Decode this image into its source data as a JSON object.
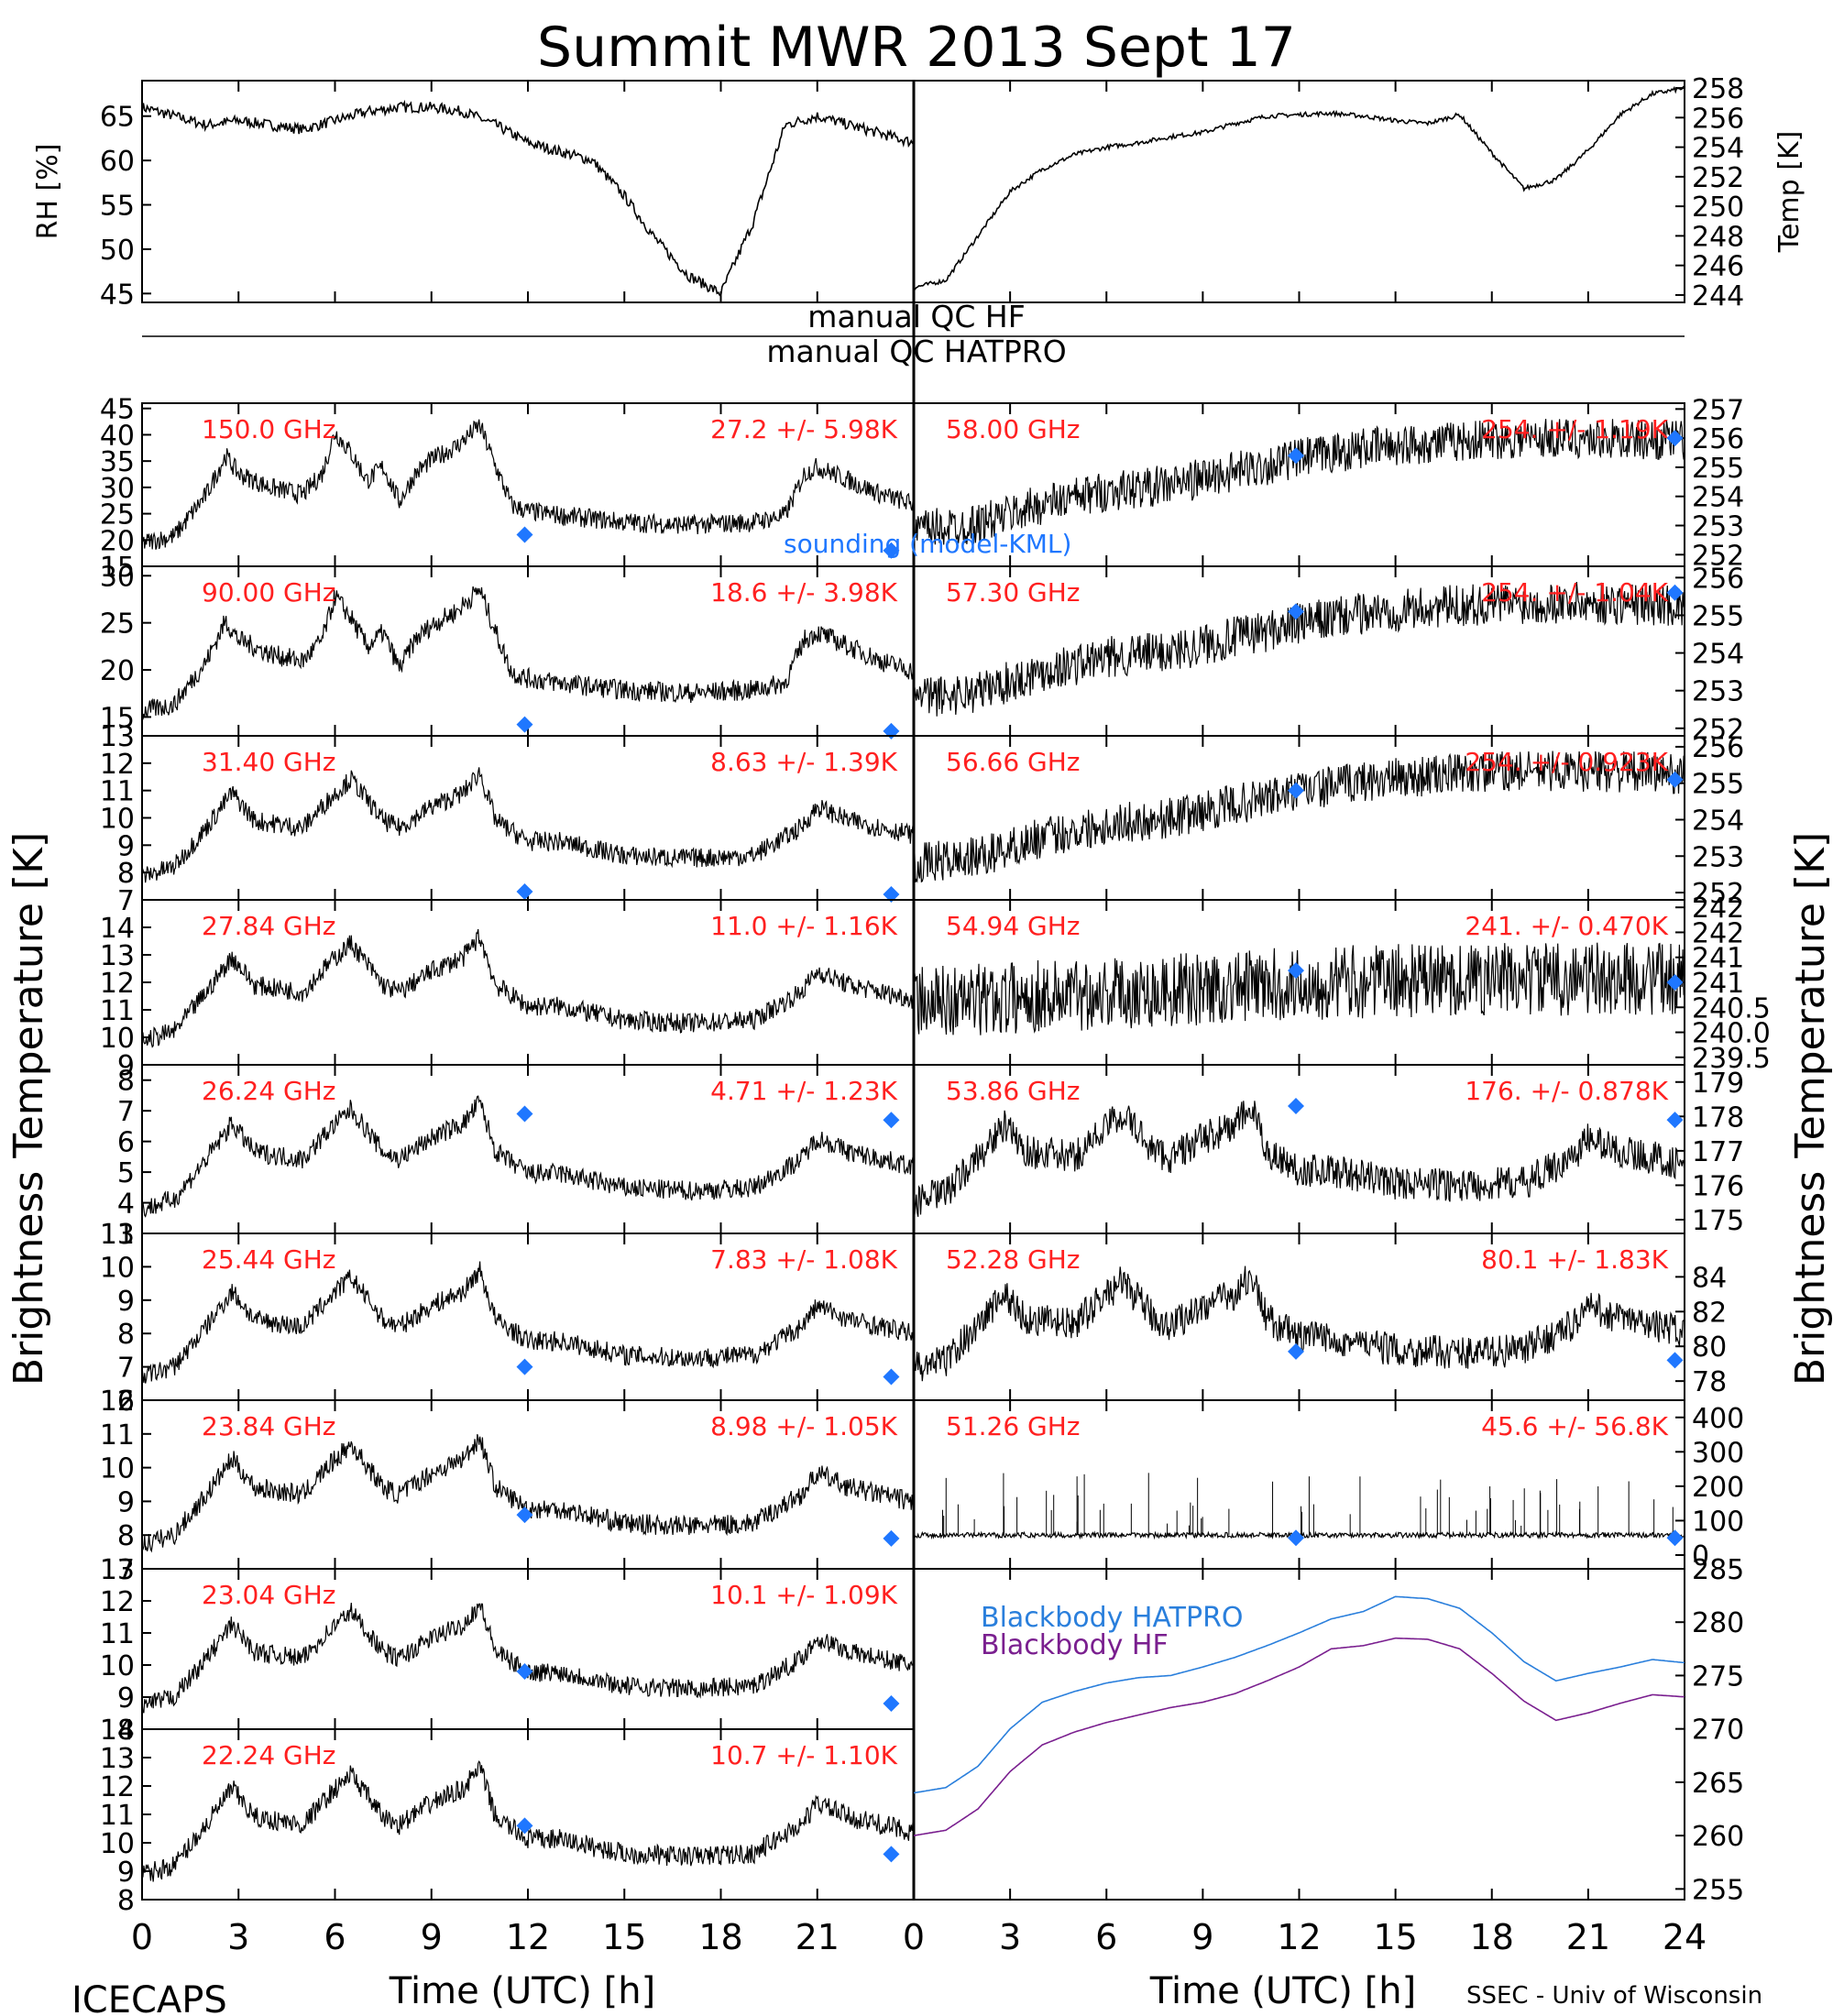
{
  "title": "Summit MWR 2013 Sept 17",
  "footer": {
    "left": "ICECAPS",
    "right": "SSEC - Univ of Wisconsin",
    "xlabel_left": "Time (UTC) [h]",
    "xlabel_right": "Time (UTC) [h]"
  },
  "left_ylabel": "Brightness Temperature [K]",
  "right_ylabel": "Brightness Temperature [K]",
  "colors": {
    "trace": "#000000",
    "label": "#ff2020",
    "sounding": "#1f77ff",
    "hatpro": "#2a7fdc",
    "hf": "#7a1f8f"
  },
  "qc": {
    "hf": "manual QC HF",
    "hatpro": "manual QC HATPRO"
  },
  "sounding_label": "sounding (model-KML)",
  "x_ticks_left": [
    "0",
    "3",
    "6",
    "9",
    "12",
    "15",
    "18",
    "21"
  ],
  "x_ticks_right": [
    "0",
    "3",
    "6",
    "9",
    "12",
    "15",
    "18",
    "21",
    "24"
  ],
  "chart_data": [
    {
      "type": "line",
      "id": "rh",
      "ylabel": "RH [%]",
      "xlim": [
        0,
        24
      ],
      "ylim": [
        44,
        69
      ],
      "yticks": [
        45,
        50,
        55,
        60,
        65
      ],
      "tick_labels": [
        "45",
        "50",
        "55",
        "60",
        "65"
      ],
      "x": [
        0,
        1,
        2,
        3,
        4,
        5,
        6,
        7,
        8,
        9,
        10,
        11,
        12,
        13,
        14,
        15,
        16,
        17,
        18,
        19,
        20,
        21,
        22,
        23,
        24
      ],
      "values": [
        66,
        65,
        64,
        64.5,
        64,
        63.5,
        64.5,
        65.5,
        66,
        66,
        65.5,
        64,
        62,
        61,
        60,
        56,
        51,
        47,
        45,
        53,
        64,
        65,
        64,
        63,
        62
      ]
    },
    {
      "type": "line",
      "id": "temp",
      "ylabel": "Temp [K]",
      "xlim": [
        0,
        24
      ],
      "ylim": [
        243.5,
        258.5
      ],
      "yticks": [
        244,
        246,
        248,
        250,
        252,
        254,
        256,
        258
      ],
      "tick_labels": [
        "244",
        "246",
        "248",
        "250",
        "252",
        "254",
        "256",
        "258"
      ],
      "x": [
        0,
        1,
        2,
        3,
        4,
        5,
        6,
        7,
        8,
        9,
        10,
        11,
        12,
        13,
        14,
        15,
        16,
        17,
        18,
        19,
        20,
        21,
        22,
        23,
        24
      ],
      "values": [
        244.5,
        245,
        248,
        251,
        252.5,
        253.5,
        254,
        254.3,
        254.7,
        255,
        255.6,
        256.1,
        256.2,
        256.3,
        256.1,
        255.8,
        255.6,
        256.2,
        253.6,
        251.2,
        251.8,
        253.8,
        256.2,
        257.6,
        258
      ]
    },
    {
      "id": "150",
      "label": "150.0 GHz",
      "stats": "27.2 +/- 5.98K",
      "ylim": [
        15,
        46
      ],
      "tick_labels": [
        "15",
        "20",
        "25",
        "30",
        "35",
        "40",
        "45"
      ],
      "sounding": [
        {
          "x": 11.9,
          "y": 21
        },
        {
          "x": 23.3,
          "y": 18
        }
      ]
    },
    {
      "id": "90",
      "label": "90.00 GHz",
      "stats": "18.6 +/- 3.98K",
      "ylim": [
        13,
        31
      ],
      "tick_labels": [
        "15",
        "20",
        "25",
        "30"
      ],
      "sounding": [
        {
          "x": 11.9,
          "y": 14.2
        },
        {
          "x": 23.3,
          "y": 13.5
        }
      ]
    },
    {
      "id": "31",
      "label": "31.40 GHz",
      "stats": "8.63 +/- 1.39K",
      "ylim": [
        7,
        13
      ],
      "tick_labels": [
        "7",
        "8",
        "9",
        "10",
        "11",
        "12",
        "13"
      ],
      "sounding": [
        {
          "x": 11.9,
          "y": 7.3
        },
        {
          "x": 23.3,
          "y": 7.2
        }
      ]
    },
    {
      "id": "27",
      "label": "27.84 GHz",
      "stats": "11.0 +/- 1.16K",
      "ylim": [
        9,
        15
      ],
      "tick_labels": [
        "9",
        "10",
        "11",
        "12",
        "13",
        "14"
      ],
      "sounding": []
    },
    {
      "id": "26",
      "label": "26.24 GHz",
      "stats": "4.71 +/- 1.23K",
      "ylim": [
        3,
        8.5
      ],
      "tick_labels": [
        "3",
        "4",
        "5",
        "6",
        "7",
        "8"
      ],
      "sounding": [
        {
          "x": 11.9,
          "y": 6.9
        },
        {
          "x": 23.3,
          "y": 6.7
        }
      ]
    },
    {
      "id": "25",
      "label": "25.44 GHz",
      "stats": "7.83 +/- 1.08K",
      "ylim": [
        6,
        11
      ],
      "tick_labels": [
        "6",
        "7",
        "8",
        "9",
        "10",
        "11"
      ],
      "sounding": [
        {
          "x": 11.9,
          "y": 7.0
        },
        {
          "x": 23.3,
          "y": 6.7
        }
      ]
    },
    {
      "id": "23_8",
      "label": "23.84 GHz",
      "stats": "8.98 +/- 1.05K",
      "ylim": [
        7,
        12
      ],
      "tick_labels": [
        "7",
        "8",
        "9",
        "10",
        "11",
        "12"
      ],
      "sounding": [
        {
          "x": 11.9,
          "y": 8.6
        },
        {
          "x": 23.3,
          "y": 7.9
        }
      ]
    },
    {
      "id": "23_0",
      "label": "23.04 GHz",
      "stats": "10.1 +/- 1.09K",
      "ylim": [
        8,
        13
      ],
      "tick_labels": [
        "8",
        "9",
        "10",
        "11",
        "12",
        "13"
      ],
      "sounding": [
        {
          "x": 11.9,
          "y": 9.8
        },
        {
          "x": 23.3,
          "y": 8.8
        }
      ]
    },
    {
      "id": "22",
      "label": "22.24 GHz",
      "stats": "10.7 +/- 1.10K",
      "ylim": [
        8,
        14
      ],
      "tick_labels": [
        "8",
        "9",
        "10",
        "11",
        "12",
        "13",
        "14"
      ],
      "sounding": [
        {
          "x": 11.9,
          "y": 10.6
        },
        {
          "x": 23.3,
          "y": 9.6
        }
      ]
    },
    {
      "id": "58",
      "label": "58.00 GHz",
      "stats": "254. +/- 1.19K",
      "ylim": [
        251.6,
        257.2
      ],
      "tick_labels": [
        "252",
        "253",
        "254",
        "255",
        "256",
        "257"
      ],
      "sounding": [
        {
          "x": 11.9,
          "y": 255.4
        },
        {
          "x": 23.7,
          "y": 256
        }
      ]
    },
    {
      "id": "57_3",
      "label": "57.30 GHz",
      "stats": "254. +/- 1.04K",
      "ylim": [
        251.8,
        256.3
      ],
      "tick_labels": [
        "252",
        "253",
        "254",
        "255",
        "256"
      ],
      "sounding": [
        {
          "x": 11.9,
          "y": 255.1
        },
        {
          "x": 23.7,
          "y": 255.6
        }
      ]
    },
    {
      "id": "56_6",
      "label": "56.66 GHz",
      "stats": "254. +/- 0.923K",
      "ylim": [
        251.8,
        256.3
      ],
      "tick_labels": [
        "252",
        "253",
        "254",
        "255",
        "256"
      ],
      "sounding": [
        {
          "x": 11.9,
          "y": 254.8
        },
        {
          "x": 23.7,
          "y": 255.1
        }
      ]
    },
    {
      "id": "54",
      "label": "54.94 GHz",
      "stats": "241. +/- 0.470K",
      "ylim": [
        239.5,
        242.3
      ],
      "tick_labels": [
        "239.5",
        "240.0",
        "240.5",
        "241",
        "241",
        "242",
        "242"
      ],
      "sounding": [
        {
          "x": 11.9,
          "y": 241.1
        },
        {
          "x": 23.7,
          "y": 240.9
        }
      ]
    },
    {
      "id": "53",
      "label": "53.86 GHz",
      "stats": "176. +/- 0.878K",
      "ylim": [
        174.6,
        179.5
      ],
      "tick_labels": [
        "175",
        "176",
        "177",
        "178",
        "179"
      ],
      "sounding": [
        {
          "x": 11.9,
          "y": 178.3
        },
        {
          "x": 23.7,
          "y": 177.9
        }
      ]
    },
    {
      "id": "52",
      "label": "52.28 GHz",
      "stats": "80.1 +/- 1.83K",
      "ylim": [
        76.9,
        86.5
      ],
      "tick_labels": [
        "78",
        "80",
        "82",
        "84"
      ],
      "sounding": [
        {
          "x": 11.9,
          "y": 79.7
        },
        {
          "x": 23.7,
          "y": 79.2
        }
      ]
    },
    {
      "id": "51",
      "label": "51.26 GHz",
      "stats": "45.6 +/- 56.8K",
      "ylim": [
        -40,
        450
      ],
      "tick_labels": [
        "0",
        "100",
        "200",
        "300",
        "400"
      ],
      "sounding": [
        {
          "x": 11.9,
          "y": 50
        },
        {
          "x": 23.7,
          "y": 50
        }
      ]
    },
    {
      "type": "line",
      "id": "bb",
      "ylabel": "Temp [K]",
      "xlim": [
        0,
        24
      ],
      "ylim": [
        254,
        285
      ],
      "tick_labels": [
        "255",
        "260",
        "265",
        "270",
        "275",
        "280",
        "285"
      ],
      "x": [
        0,
        1,
        2,
        3,
        4,
        5,
        6,
        7,
        8,
        9,
        10,
        11,
        12,
        13,
        14,
        15,
        16,
        17,
        18,
        19,
        20,
        21,
        22,
        23,
        24
      ],
      "series": [
        {
          "name": "Blackbody HATPRO",
          "values": [
            264,
            264.5,
            266.5,
            270,
            272.5,
            273.5,
            274.3,
            274.8,
            275,
            275.8,
            276.7,
            277.8,
            279,
            280.3,
            281,
            282.4,
            282.2,
            281.3,
            279,
            276.3,
            274.5,
            275.2,
            275.8,
            276.5,
            276.2
          ]
        },
        {
          "name": "Blackbody HF",
          "values": [
            260,
            260.5,
            262.5,
            266,
            268.5,
            269.7,
            270.6,
            271.3,
            272,
            272.5,
            273.3,
            274.5,
            275.8,
            277.5,
            277.8,
            278.5,
            278.4,
            277.5,
            275.2,
            272.6,
            270.8,
            271.5,
            272.4,
            273.2,
            273
          ]
        }
      ]
    }
  ]
}
